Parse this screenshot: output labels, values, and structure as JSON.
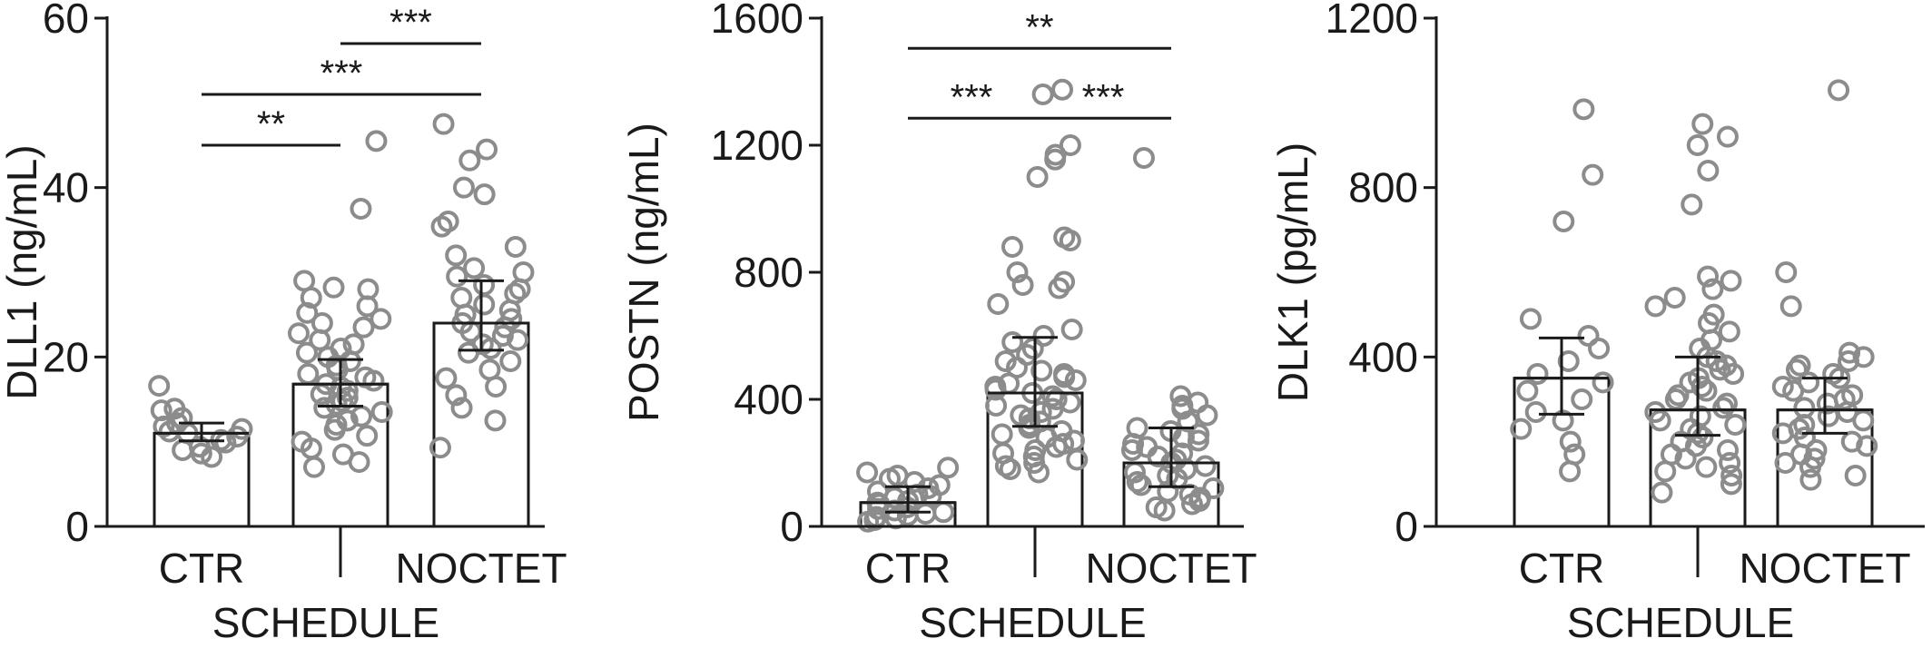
{
  "chart_data": [
    {
      "type": "bar",
      "title": "",
      "xlabel": "SCHEDULE",
      "ylabel": "DLL1 (ng/mL)",
      "ylim": [
        0,
        60
      ],
      "yticks": [
        0,
        20,
        40,
        60
      ],
      "tick_labels": [
        "0",
        "20",
        "40",
        "60"
      ],
      "categories": [
        "CTR",
        "",
        "NOCTET"
      ],
      "values": [
        11,
        16.8,
        24
      ],
      "error_low": [
        10.1,
        14.2,
        20.8
      ],
      "error_high": [
        12.2,
        19.7,
        29
      ],
      "points": [
        [
          16.6,
          13.9,
          13.7,
          12.8,
          12.2,
          11.8,
          11.5,
          11.2,
          11.0,
          10.6,
          10.2,
          9.9,
          9.4,
          9.0,
          8.6,
          8.2
        ],
        [
          45.5,
          37.5,
          29.0,
          28.2,
          28.0,
          27.0,
          26.0,
          25.2,
          24.5,
          24.0,
          23.5,
          22.8,
          22.0,
          21.5,
          21.0,
          20.5,
          20.0,
          19.5,
          19.0,
          18.5,
          18.0,
          17.6,
          17.2,
          16.8,
          16.4,
          16.0,
          15.6,
          15.2,
          14.8,
          14.4,
          14.0,
          13.5,
          13.0,
          12.5,
          12.0,
          11.4,
          10.7,
          10.0,
          9.2,
          8.5,
          7.6,
          7.0
        ],
        [
          47.5,
          44.5,
          43.2,
          40.0,
          39.2,
          36.0,
          35.4,
          33.0,
          32.0,
          30.5,
          30.0,
          29.5,
          28.5,
          28.0,
          27.5,
          27.0,
          26.2,
          25.5,
          25.0,
          24.5,
          24.0,
          23.5,
          23.0,
          22.5,
          22.0,
          21.5,
          21.0,
          20.5,
          19.5,
          18.5,
          17.5,
          16.5,
          15.5,
          14.0,
          12.5,
          9.3
        ]
      ],
      "significance": [
        {
          "from": 0,
          "to": 1,
          "label": "**",
          "y": 45
        },
        {
          "from": 0,
          "to": 2,
          "label": "***",
          "y": 51
        },
        {
          "from": 1,
          "to": 2,
          "label": "***",
          "y": 57
        }
      ]
    },
    {
      "type": "bar",
      "title": "",
      "xlabel": "SCHEDULE",
      "ylabel": "POSTN (ng/mL)",
      "ylim": [
        0,
        1600
      ],
      "yticks": [
        0,
        400,
        800,
        1200,
        1600
      ],
      "tick_labels": [
        "0",
        "400",
        "800",
        "1200",
        "1600"
      ],
      "categories": [
        "CTR",
        "",
        "NOCTET"
      ],
      "values": [
        75,
        420,
        200
      ],
      "error_low": [
        45,
        315,
        125
      ],
      "error_high": [
        125,
        595,
        310
      ],
      "points": [
        [
          185,
          170,
          160,
          150,
          140,
          130,
          120,
          110,
          100,
          95,
          90,
          80,
          75,
          70,
          60,
          55,
          50,
          45,
          40,
          35,
          30,
          25,
          20,
          15
        ],
        [
          1375,
          1360,
          1200,
          1170,
          1155,
          1100,
          910,
          900,
          880,
          800,
          770,
          760,
          750,
          700,
          620,
          600,
          580,
          560,
          540,
          520,
          500,
          490,
          480,
          470,
          460,
          450,
          440,
          430,
          420,
          410,
          400,
          390,
          380,
          370,
          360,
          350,
          340,
          330,
          320,
          310,
          300,
          290,
          280,
          270,
          260,
          250,
          240,
          230,
          220,
          210,
          200,
          190,
          180,
          170
        ],
        [
          1160,
          410,
          390,
          380,
          370,
          350,
          330,
          310,
          300,
          290,
          280,
          270,
          260,
          250,
          240,
          230,
          220,
          210,
          200,
          190,
          180,
          170,
          160,
          150,
          140,
          130,
          120,
          110,
          100,
          90,
          80,
          70,
          60,
          50
        ]
      ],
      "significance": [
        {
          "from": 0,
          "to": 1,
          "label": "***",
          "y": 1285
        },
        {
          "from": 1,
          "to": 2,
          "label": "***",
          "y": 1285
        },
        {
          "from": 0,
          "to": 2,
          "label": "**",
          "y": 1505
        }
      ]
    },
    {
      "type": "bar",
      "title": "",
      "xlabel": "SCHEDULE",
      "ylabel": "DLK1 (pg/mL)",
      "ylim": [
        0,
        1200
      ],
      "yticks": [
        0,
        400,
        800,
        1200
      ],
      "tick_labels": [
        "0",
        "400",
        "800",
        "1200"
      ],
      "categories": [
        "CTR",
        "",
        "NOCTET"
      ],
      "values": [
        350,
        275,
        275
      ],
      "error_low": [
        265,
        215,
        220
      ],
      "error_high": [
        445,
        400,
        350
      ],
      "points": [
        [
          985,
          830,
          720,
          490,
          450,
          420,
          390,
          360,
          340,
          320,
          300,
          270,
          250,
          230,
          200,
          170,
          130
        ],
        [
          950,
          920,
          900,
          840,
          760,
          590,
          580,
          560,
          540,
          520,
          500,
          480,
          460,
          440,
          420,
          400,
          390,
          380,
          370,
          360,
          350,
          340,
          330,
          320,
          310,
          300,
          290,
          280,
          270,
          260,
          250,
          240,
          230,
          220,
          210,
          200,
          190,
          180,
          170,
          160,
          150,
          140,
          130,
          120,
          100,
          80
        ],
        [
          1030,
          600,
          520,
          410,
          400,
          390,
          380,
          370,
          360,
          350,
          340,
          330,
          320,
          310,
          300,
          290,
          280,
          270,
          260,
          250,
          240,
          230,
          220,
          210,
          200,
          190,
          180,
          170,
          160,
          150,
          140,
          120,
          110
        ]
      ],
      "significance": []
    }
  ]
}
